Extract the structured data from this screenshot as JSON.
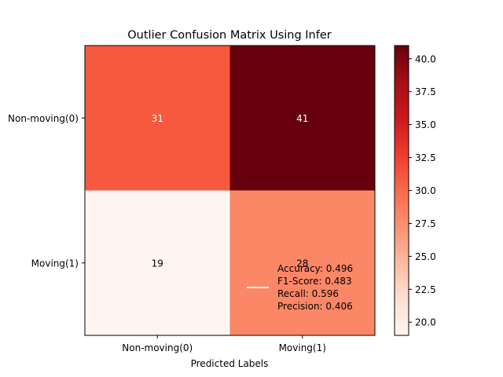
{
  "chart_data": {
    "type": "heatmap",
    "title": "Outlier Confusion Matrix Using Infer",
    "xlabel": "Predicted Labels",
    "ylabel": "",
    "x_categories": [
      "Non-moving(0)",
      "Moving(1)"
    ],
    "y_categories": [
      "Non-moving(0)",
      "Moving(1)"
    ],
    "values": [
      [
        31,
        41
      ],
      [
        19,
        28
      ]
    ],
    "colormap": "Reds",
    "colorbar": {
      "min": 19,
      "max": 41,
      "ticks": [
        "20.0",
        "22.5",
        "25.0",
        "27.5",
        "30.0",
        "32.5",
        "35.0",
        "37.5",
        "40.0"
      ]
    },
    "legend": {
      "placement": "lower-right",
      "line_color": "#ffffff",
      "entries": [
        "Accuracy: 0.496",
        "F1-Score: 0.483",
        "Recall: 0.596",
        "Precision: 0.406"
      ]
    }
  }
}
